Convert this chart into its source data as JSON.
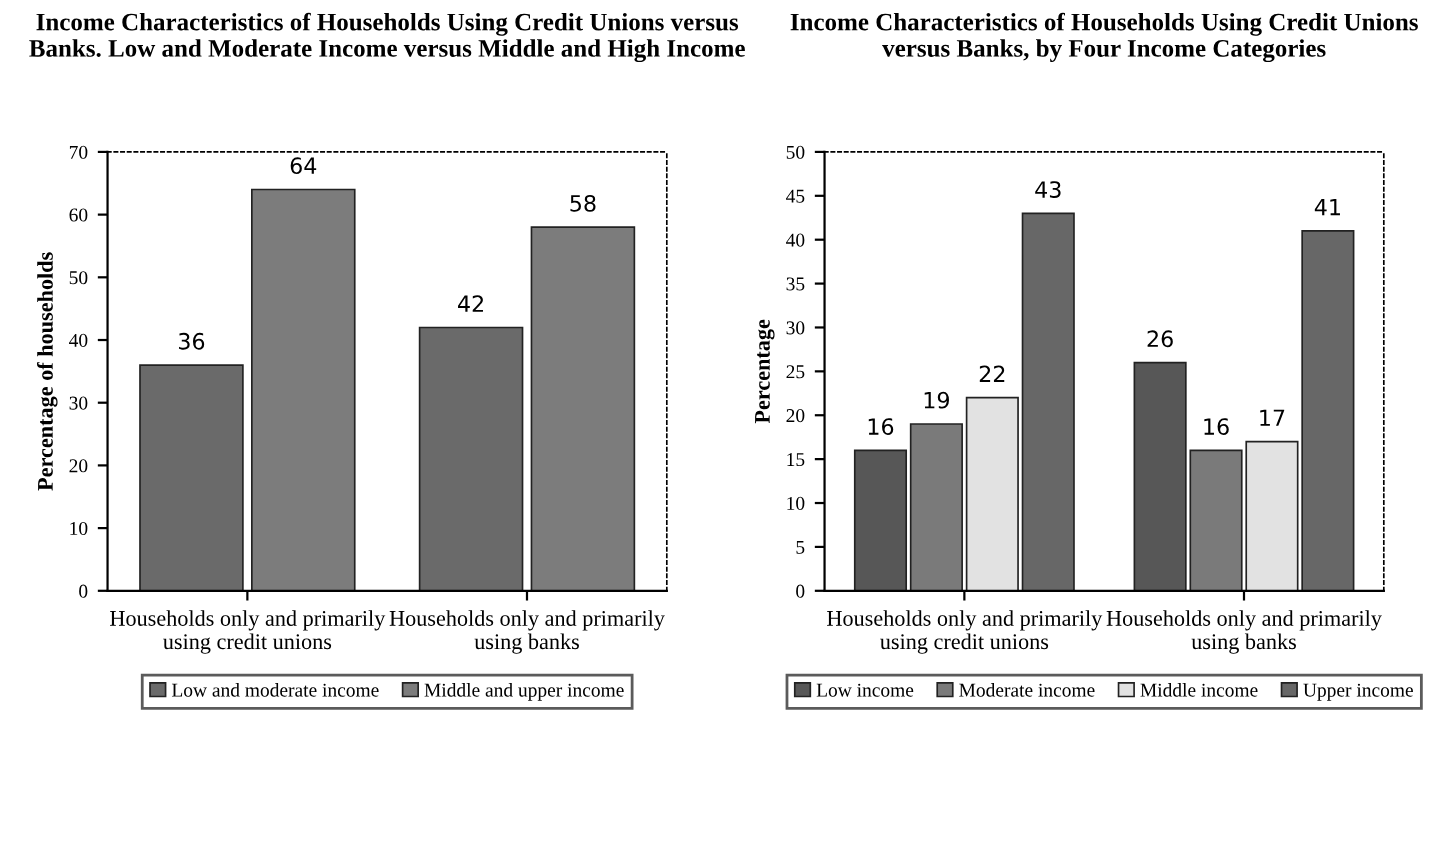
{
  "chart_data": [
    {
      "type": "bar",
      "title": "Income Characteristics of Households Using Credit Unions versus Banks. Low and Moderate Income versus Middle and High Income",
      "ylabel": "Percentage of households",
      "categories": [
        "Households only and primarily using credit unions",
        "Households only and primarily using banks"
      ],
      "series": [
        {
          "name": "Low and moderate income",
          "color": "#6a6a6a",
          "values": [
            36,
            42
          ]
        },
        {
          "name": "Middle and upper income",
          "color": "#7c7c7c",
          "values": [
            64,
            58
          ]
        }
      ],
      "ylim": [
        0,
        70
      ],
      "yticks": [
        0,
        10,
        20,
        30,
        40,
        50,
        60,
        70
      ],
      "data_labels": true,
      "legend": "bottom",
      "grid": false
    },
    {
      "type": "bar",
      "title": "Income Characteristics of Households Using Credit Unions versus Banks, by Four Income Categories",
      "ylabel": "Percentage",
      "categories": [
        "Households only and primarily using credit unions",
        "Households only and primarily using banks"
      ],
      "series": [
        {
          "name": "Low income",
          "color": "#575757",
          "values": [
            16,
            26
          ]
        },
        {
          "name": "Moderate income",
          "color": "#7a7a7a",
          "values": [
            19,
            16
          ]
        },
        {
          "name": "Middle income",
          "color": "#e2e2e2",
          "values": [
            22,
            17
          ]
        },
        {
          "name": "Upper income",
          "color": "#676767",
          "values": [
            43,
            41
          ]
        }
      ],
      "ylim": [
        0,
        50
      ],
      "yticks": [
        0,
        5,
        10,
        15,
        20,
        25,
        30,
        35,
        40,
        45,
        50
      ],
      "data_labels": true,
      "legend": "bottom",
      "grid": false
    }
  ]
}
